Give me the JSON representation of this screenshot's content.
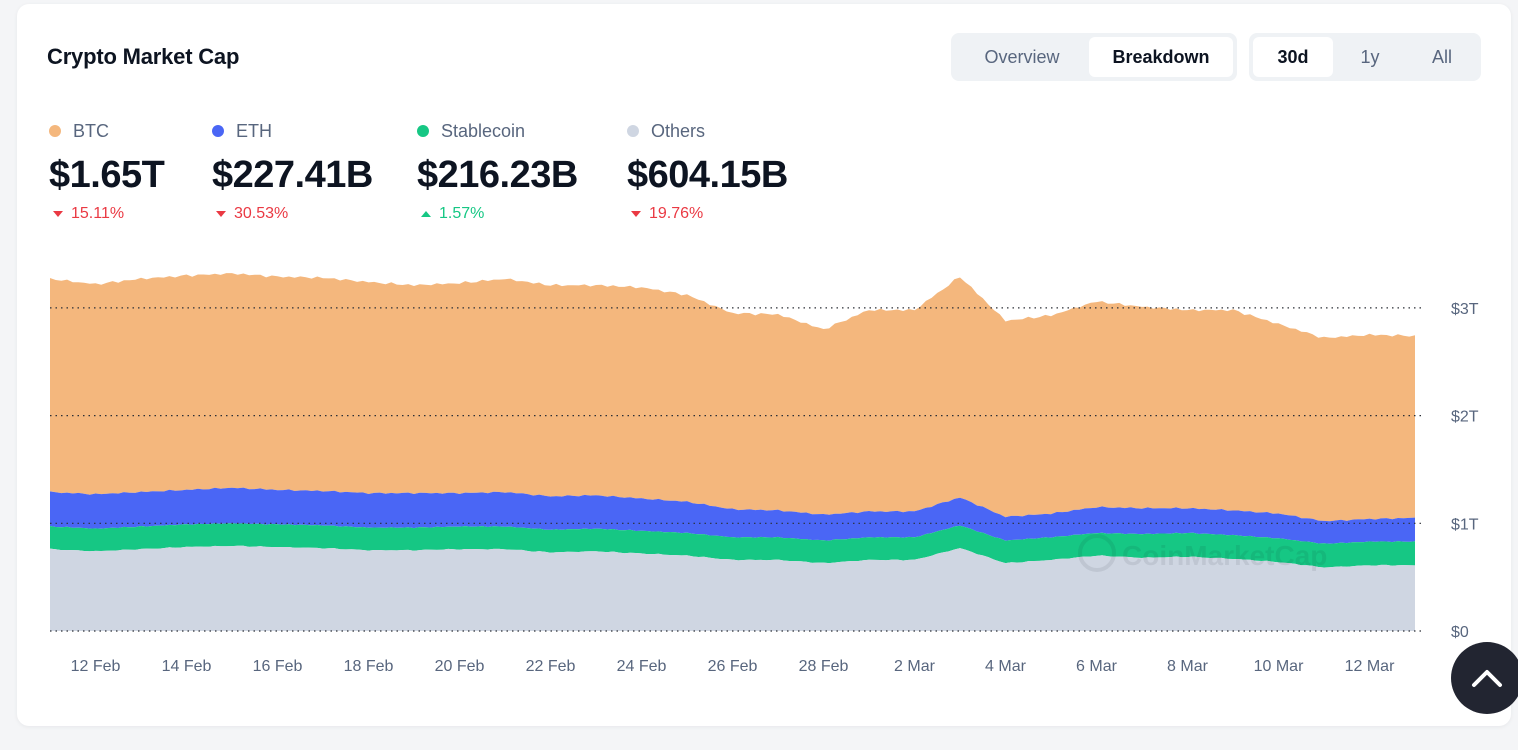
{
  "header": {
    "title": "Crypto Market Cap"
  },
  "view_toggle": {
    "options": [
      "Overview",
      "Breakdown"
    ],
    "active": "Breakdown"
  },
  "range_toggle": {
    "options": [
      "30d",
      "1y",
      "All"
    ],
    "active": "30d"
  },
  "stats": [
    {
      "name": "BTC",
      "value": "$1.65T",
      "change": "15.11%",
      "direction": "down",
      "color": "#f4b77d"
    },
    {
      "name": "ETH",
      "value": "$227.41B",
      "change": "30.53%",
      "direction": "down",
      "color": "#4a66f5"
    },
    {
      "name": "Stablecoin",
      "value": "$216.23B",
      "change": "1.57%",
      "direction": "up",
      "color": "#16c784"
    },
    {
      "name": "Others",
      "value": "$604.15B",
      "change": "19.76%",
      "direction": "down",
      "color": "#cfd6e2"
    }
  ],
  "watermark": "CoinMarketCap",
  "chart_data": {
    "type": "area",
    "stacked": true,
    "x_ticks": [
      "12 Feb",
      "14 Feb",
      "16 Feb",
      "18 Feb",
      "20 Feb",
      "22 Feb",
      "24 Feb",
      "26 Feb",
      "28 Feb",
      "2 Mar",
      "4 Mar",
      "6 Mar",
      "8 Mar",
      "10 Mar",
      "12 Mar"
    ],
    "y_ticks": [
      "$0",
      "$1T",
      "$2T",
      "$3T"
    ],
    "y_tick_values": [
      0,
      1,
      2,
      3
    ],
    "y_unit": "T",
    "ylim": [
      0,
      3.3
    ],
    "x_start_label": "11 Feb",
    "x": [
      "11 Feb",
      "12 Feb",
      "13 Feb",
      "14 Feb",
      "15 Feb",
      "16 Feb",
      "17 Feb",
      "18 Feb",
      "19 Feb",
      "20 Feb",
      "21 Feb",
      "22 Feb",
      "23 Feb",
      "24 Feb",
      "25 Feb",
      "26 Feb",
      "27 Feb",
      "28 Feb",
      "1 Mar",
      "2 Mar",
      "3 Mar",
      "4 Mar",
      "5 Mar",
      "6 Mar",
      "7 Mar",
      "8 Mar",
      "9 Mar",
      "10 Mar",
      "11 Mar",
      "12 Mar",
      "13 Mar"
    ],
    "series": [
      {
        "name": "Others",
        "color": "#cfd6e2",
        "values": [
          0.76,
          0.74,
          0.76,
          0.78,
          0.79,
          0.78,
          0.77,
          0.75,
          0.75,
          0.76,
          0.76,
          0.73,
          0.74,
          0.72,
          0.7,
          0.66,
          0.66,
          0.63,
          0.66,
          0.66,
          0.77,
          0.63,
          0.66,
          0.7,
          0.68,
          0.69,
          0.67,
          0.64,
          0.59,
          0.61,
          0.61
        ]
      },
      {
        "name": "Stablecoin",
        "color": "#16c784",
        "values": [
          0.21,
          0.21,
          0.21,
          0.21,
          0.21,
          0.21,
          0.21,
          0.21,
          0.21,
          0.21,
          0.21,
          0.21,
          0.21,
          0.21,
          0.21,
          0.21,
          0.21,
          0.21,
          0.21,
          0.21,
          0.21,
          0.21,
          0.21,
          0.21,
          0.22,
          0.22,
          0.22,
          0.22,
          0.22,
          0.22,
          0.22
        ]
      },
      {
        "name": "ETH",
        "color": "#4a66f5",
        "values": [
          0.32,
          0.32,
          0.32,
          0.32,
          0.33,
          0.32,
          0.32,
          0.32,
          0.32,
          0.31,
          0.32,
          0.31,
          0.31,
          0.3,
          0.29,
          0.26,
          0.25,
          0.24,
          0.24,
          0.24,
          0.26,
          0.22,
          0.22,
          0.24,
          0.24,
          0.23,
          0.23,
          0.23,
          0.21,
          0.21,
          0.22
        ]
      },
      {
        "name": "BTC",
        "color": "#f4b77d",
        "values": [
          1.98,
          1.95,
          1.98,
          1.99,
          1.99,
          1.98,
          1.98,
          1.96,
          1.93,
          1.95,
          1.98,
          1.96,
          1.95,
          1.96,
          1.92,
          1.82,
          1.82,
          1.72,
          1.87,
          1.87,
          2.05,
          1.82,
          1.84,
          1.91,
          1.87,
          1.84,
          1.86,
          1.76,
          1.7,
          1.71,
          1.69
        ]
      }
    ]
  }
}
